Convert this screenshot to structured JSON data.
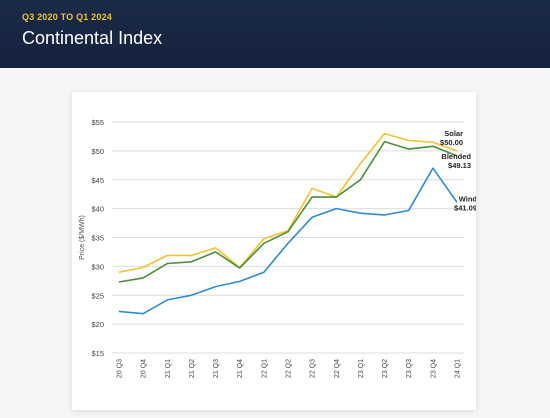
{
  "header": {
    "eyebrow": "Q3 2020 TO Q1 2024",
    "title": "Continental Index"
  },
  "colors": {
    "header_bg": "#162540",
    "accent_gold": "#f2c230",
    "solar": "#f2c230",
    "blended": "#4a8f3c",
    "wind": "#2f8ccc",
    "grid": "#d9dde2"
  },
  "chart_data": {
    "type": "line",
    "title": "",
    "xlabel": "",
    "ylabel": "Price ($/MWh)",
    "ylim": [
      15,
      55
    ],
    "yticks": [
      15,
      20,
      25,
      30,
      35,
      40,
      45,
      50,
      55
    ],
    "ytick_labels": [
      "$15",
      "$20",
      "$25",
      "$30",
      "$35",
      "$40",
      "$45",
      "$50",
      "$55"
    ],
    "grid": true,
    "categories": [
      "20 Q3",
      "20 Q4",
      "21 Q1",
      "21 Q2",
      "21 Q3",
      "21 Q4",
      "22 Q1",
      "22 Q2",
      "22 Q3",
      "22 Q4",
      "23 Q1",
      "23 Q2",
      "23 Q3",
      "23 Q4",
      "24 Q1"
    ],
    "series": [
      {
        "name": "Solar",
        "end_label": "$50.00",
        "color": "#f2c230",
        "values": [
          29.0,
          29.8,
          31.9,
          31.9,
          33.2,
          29.8,
          34.8,
          36.2,
          43.5,
          42.0,
          47.8,
          53.0,
          51.8,
          51.5,
          50.0
        ]
      },
      {
        "name": "Blended",
        "end_label": "$49.13",
        "color": "#4a8f3c",
        "values": [
          27.3,
          28.0,
          30.5,
          30.8,
          32.5,
          29.7,
          34.0,
          36.0,
          42.0,
          42.0,
          45.0,
          51.6,
          50.3,
          50.8,
          49.13
        ]
      },
      {
        "name": "Wind",
        "end_label": "$41.09",
        "color": "#2f8ccc",
        "values": [
          22.2,
          21.8,
          24.2,
          25.0,
          26.5,
          27.4,
          29.0,
          34.0,
          38.5,
          40.0,
          39.2,
          38.9,
          39.7,
          47.0,
          41.09
        ]
      }
    ]
  }
}
